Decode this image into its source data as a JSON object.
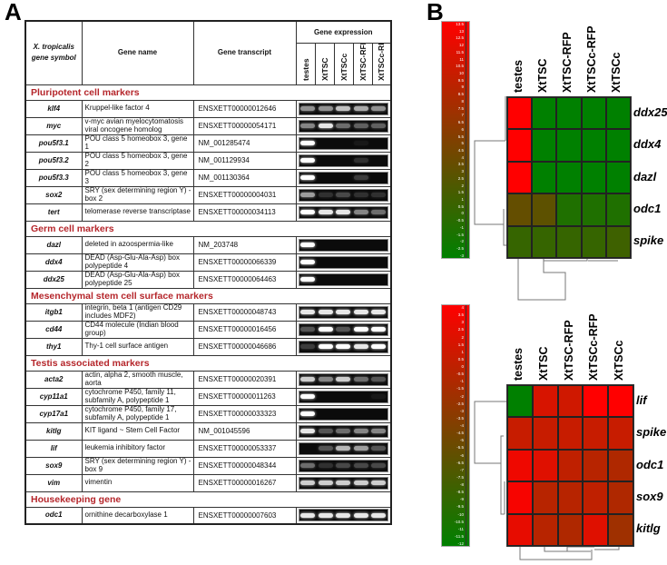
{
  "panel_a": {
    "letter": "A",
    "headers": {
      "symbol": "X. tropicalis gene symbol",
      "name": "Gene name",
      "transcript": "Gene transcript",
      "expression": "Gene expression"
    },
    "lanes": [
      "testes",
      "XtTSC",
      "XtTSCc",
      "XtTSC-RFP",
      "XtTSCc-RFP"
    ],
    "sections": [
      {
        "title": "Pluripotent cell markers",
        "genes": [
          {
            "symbol": "klf4",
            "name": "Kruppel-like factor 4",
            "transcript": "ENSXETT00000012646",
            "bands": [
              0.55,
              0.55,
              0.75,
              0.65,
              0.55
            ]
          },
          {
            "symbol": "myc",
            "name": "v-myc avian myelocytomatosis viral oncogene homolog",
            "transcript": "ENSXETT00000054171",
            "bands": [
              0.5,
              0.9,
              0.4,
              0.35,
              0.35
            ]
          },
          {
            "symbol": "pou5f3.1",
            "name": "POU class 5 homeobox 3, gene 1",
            "transcript": "NM_001285474",
            "bands": [
              1,
              0,
              0,
              0.05,
              0
            ]
          },
          {
            "symbol": "pou5f3.2",
            "name": "POU class 5 homeobox 3, gene 2",
            "transcript": "NM_001129934",
            "bands": [
              1,
              0,
              0,
              0.15,
              0
            ]
          },
          {
            "symbol": "pou5f3.3",
            "name": "POU class 5 homeobox 3, gene 3",
            "transcript": "NM_001130364",
            "bands": [
              1,
              0,
              0,
              0.2,
              0
            ]
          },
          {
            "symbol": "sox2",
            "name": "SRY (sex determining region Y) - box 2",
            "transcript": "ENSXETT00000004031",
            "bands": [
              0.6,
              0.15,
              0.25,
              0.15,
              0.15
            ]
          },
          {
            "symbol": "tert",
            "name": "telomerase reverse transcriptase",
            "transcript": "ENSXETT00000034113",
            "bands": [
              1,
              0.9,
              0.9,
              0.5,
              0.4
            ]
          }
        ]
      },
      {
        "title": "Germ cell markers",
        "genes": [
          {
            "symbol": "dazl",
            "name": "deleted in azoospermia-like",
            "transcript": "NM_203748",
            "bands": [
              1,
              0,
              0,
              0,
              0
            ]
          },
          {
            "symbol": "ddx4",
            "name": "DEAD (Asp-Glu-Ala-Asp) box polypeptide 4",
            "transcript": "ENSXETT00000066339",
            "bands": [
              1,
              0,
              0,
              0,
              0
            ]
          },
          {
            "symbol": "ddx25",
            "name": "DEAD (Asp-Glu-Ala-Asp) box polypeptide 25",
            "transcript": "ENSXETT00000064463",
            "bands": [
              1,
              0,
              0,
              0,
              0
            ]
          }
        ]
      },
      {
        "title": "Mesenchymal stem cell surface markers",
        "genes": [
          {
            "symbol": "itgb1",
            "name": "integrin, beta 1 (antigen CD29 includes MDF2)",
            "transcript": "ENSXETT00000048743",
            "bands": [
              0.9,
              0.9,
              0.9,
              0.9,
              0.9
            ]
          },
          {
            "symbol": "cd44",
            "name": "CD44 molecule (Indian blood group)",
            "transcript": "ENSXETT00000016456",
            "bands": [
              0.3,
              1,
              0.3,
              1,
              1
            ]
          },
          {
            "symbol": "thy1",
            "name": "Thy-1 cell surface antigen",
            "transcript": "ENSXETT00000046686",
            "bands": [
              0.2,
              1,
              1,
              0.9,
              1
            ]
          }
        ]
      },
      {
        "title": "Testis associated markers",
        "genes": [
          {
            "symbol": "acta2",
            "name": "actin, alpha 2, smooth muscle, aorta",
            "transcript": "ENSXETT00000020391",
            "bands": [
              0.8,
              0.5,
              0.8,
              0.4,
              0.3
            ]
          },
          {
            "symbol": "cyp11a1",
            "name": "cytochrome P450, family 11, subfamily A, polypeptide 1",
            "transcript": "ENSXETT00000011263",
            "bands": [
              1,
              0,
              0,
              0,
              0.05
            ]
          },
          {
            "symbol": "cyp17a1",
            "name": "cytochrome P450, family 17, subfamily A, polypeptide 1",
            "transcript": "ENSXETT00000033323",
            "bands": [
              1,
              0,
              0,
              0,
              0
            ]
          },
          {
            "symbol": "kitlg",
            "name": "KIT ligand ~ Stem Cell Factor",
            "transcript": "NM_001045596",
            "bands": [
              0.9,
              0.3,
              0.4,
              0.5,
              0.5
            ]
          },
          {
            "symbol": "lif",
            "name": "leukemia inhibitory factor",
            "transcript": "ENSXETT00000053337",
            "bands": [
              0,
              0.3,
              0.7,
              0.6,
              0.3
            ]
          },
          {
            "symbol": "sox9",
            "name": "SRY (sex determining region Y) - box 9",
            "transcript": "ENSXETT00000048344",
            "bands": [
              0.4,
              0.15,
              0.25,
              0.25,
              0.25
            ]
          },
          {
            "symbol": "vim",
            "name": "vimentin",
            "transcript": "ENSXETT00000016267",
            "bands": [
              0.8,
              0.8,
              0.8,
              0.8,
              0.8
            ]
          }
        ]
      },
      {
        "title": "Housekeeping gene",
        "genes": [
          {
            "symbol": "odc1",
            "name": "ornithine decarboxylase 1",
            "transcript": "ENSXETT00000007603",
            "bands": [
              0.9,
              0.9,
              0.9,
              0.9,
              0.9
            ]
          }
        ]
      }
    ]
  },
  "panel_b": {
    "letter": "B",
    "colors": {
      "low": "#008000",
      "high": "#ff0000"
    },
    "heatmaps": [
      {
        "scale_range": [
          -3,
          13.5
        ],
        "scale_ticks": [
          "13.5",
          "13",
          "12.5",
          "12",
          "11.5",
          "11",
          "10.5",
          "10",
          "9.5",
          "9",
          "8.5",
          "8",
          "7.5",
          "7",
          "6.5",
          "6",
          "5.5",
          "5",
          "4.5",
          "4",
          "3.5",
          "3",
          "2.5",
          "2",
          "1.5",
          "1",
          "0.5",
          "0",
          "-0.5",
          "-1",
          "-1.5",
          "-2",
          "-2.5",
          "-3"
        ],
        "columns": [
          "testes",
          "XtTSC",
          "XtTSC-RFP",
          "XtTSCc-RFP",
          "XtTSCc"
        ],
        "rows": [
          "ddx25",
          "ddx4",
          "dazl",
          "odc1",
          "spike"
        ],
        "values": [
          [
            13.5,
            -3,
            -3,
            -3,
            -3
          ],
          [
            13.5,
            -3,
            -3,
            -3,
            -3
          ],
          [
            13.5,
            -3,
            -3,
            -3,
            -3
          ],
          [
            3.5,
            3,
            -1,
            -1,
            -1
          ],
          [
            0.5,
            0.5,
            0.5,
            0.5,
            1
          ]
        ]
      },
      {
        "scale_range": [
          -12,
          4
        ],
        "scale_ticks": [
          "4",
          "3.5",
          "3",
          "2.5",
          "2",
          "1.5",
          "1",
          "0.5",
          "0",
          "-0.5",
          "-1",
          "-1.5",
          "-2",
          "-2.5",
          "-3",
          "-3.5",
          "-4",
          "-4.5",
          "-5",
          "-5.5",
          "-6",
          "-6.5",
          "-7",
          "-7.5",
          "-8",
          "-8.5",
          "-9",
          "-9.5",
          "-10",
          "-10.5",
          "-11",
          "-11.5",
          "-12"
        ],
        "columns": [
          "testes",
          "XtTSC",
          "XtTSC-RFP",
          "XtTSCc-RFP",
          "XtTSCc"
        ],
        "rows": [
          "lif",
          "spike",
          "odc1",
          "sox9",
          "kitlg"
        ],
        "values": [
          [
            -12,
            1.5,
            1,
            4,
            4
          ],
          [
            0.5,
            0.5,
            0.5,
            0.5,
            0.5
          ],
          [
            3,
            2,
            0,
            -0.5,
            -1
          ],
          [
            3.5,
            -0.5,
            -0.5,
            0,
            -1
          ],
          [
            2.5,
            -0.5,
            -1,
            2,
            -2
          ]
        ]
      }
    ]
  }
}
